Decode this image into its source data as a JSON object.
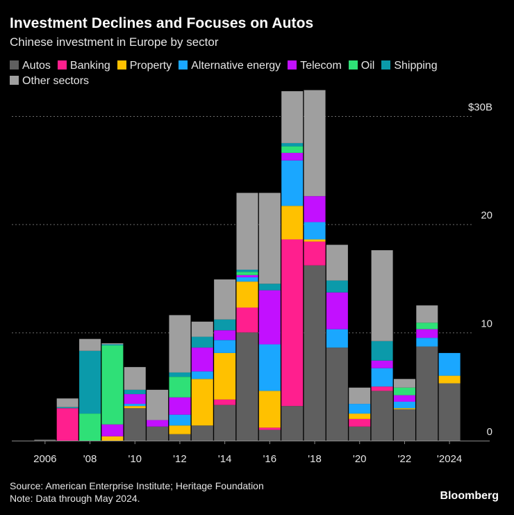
{
  "title": "Investment Declines and Focuses on Autos",
  "subtitle": "Chinese investment in Europe by sector",
  "source": "Source: American Enterprise Institute; Heritage Foundation",
  "note": "Note: Data through May 2024.",
  "brand": "Bloomberg",
  "chart_data": {
    "type": "bar",
    "stacked": true,
    "title": "Investment Declines and Focuses on Autos",
    "subtitle": "Chinese investment in Europe by sector",
    "xlabel": "",
    "ylabel": "",
    "ylim": [
      0,
      30
    ],
    "y_ticks": [
      {
        "value": 0,
        "label": "0"
      },
      {
        "value": 10,
        "label": "10"
      },
      {
        "value": 20,
        "label": "20"
      },
      {
        "value": 30,
        "label": "$30B"
      }
    ],
    "x_tick_labels": [
      {
        "year": 2006,
        "label": "2006"
      },
      {
        "year": 2008,
        "label": "'08"
      },
      {
        "year": 2010,
        "label": "'10"
      },
      {
        "year": 2012,
        "label": "'12"
      },
      {
        "year": 2014,
        "label": "'14"
      },
      {
        "year": 2016,
        "label": "'16"
      },
      {
        "year": 2018,
        "label": "'18"
      },
      {
        "year": 2020,
        "label": "'20"
      },
      {
        "year": 2022,
        "label": "'22"
      },
      {
        "year": 2024,
        "label": "'2024"
      }
    ],
    "categories": [
      2005,
      2006,
      2007,
      2008,
      2009,
      2010,
      2011,
      2012,
      2013,
      2014,
      2015,
      2016,
      2017,
      2018,
      2019,
      2020,
      2021,
      2022,
      2023,
      2024
    ],
    "series": [
      {
        "name": "Autos",
        "color": "#5f5f5f",
        "values": [
          0.0,
          0.1,
          0.0,
          0.0,
          0.0,
          3.0,
          1.3,
          0.6,
          1.4,
          3.3,
          10.0,
          1.0,
          3.2,
          16.2,
          8.6,
          1.3,
          4.6,
          2.9,
          8.7,
          5.3
        ]
      },
      {
        "name": "Banking",
        "color": "#ff1f8e",
        "values": [
          0.0,
          0.0,
          3.0,
          0.0,
          0.0,
          0.0,
          0.0,
          0.0,
          0.0,
          0.5,
          2.3,
          0.2,
          15.4,
          2.2,
          0.0,
          0.7,
          0.4,
          0.0,
          0.0,
          0.0
        ]
      },
      {
        "name": "Property",
        "color": "#ffc100",
        "values": [
          0.0,
          0.0,
          0.0,
          0.0,
          0.4,
          0.2,
          0.0,
          0.8,
          4.3,
          4.3,
          2.4,
          3.4,
          3.1,
          0.2,
          0.0,
          0.5,
          0.0,
          0.1,
          0.0,
          0.7
        ]
      },
      {
        "name": "Alternative energy",
        "color": "#1aa7ff",
        "values": [
          0.0,
          0.0,
          0.0,
          0.0,
          0.0,
          0.2,
          0.0,
          1.0,
          0.7,
          1.2,
          0.4,
          4.3,
          4.2,
          1.6,
          1.7,
          0.9,
          1.7,
          0.6,
          0.8,
          2.1
        ]
      },
      {
        "name": "Telecom",
        "color": "#c210ff",
        "values": [
          0.0,
          0.0,
          0.0,
          0.0,
          1.1,
          0.9,
          0.6,
          1.6,
          2.2,
          0.9,
          0.2,
          5.0,
          0.7,
          2.4,
          3.4,
          0.0,
          0.7,
          0.6,
          0.8,
          0.0
        ]
      },
      {
        "name": "Oil",
        "color": "#2fe077",
        "values": [
          0.0,
          0.0,
          0.0,
          2.5,
          7.3,
          0.0,
          0.0,
          1.9,
          0.0,
          0.0,
          0.3,
          0.0,
          0.6,
          0.0,
          0.0,
          0.0,
          0.0,
          0.7,
          0.6,
          0.0
        ]
      },
      {
        "name": "Shipping",
        "color": "#0b9aaa",
        "values": [
          0.0,
          0.0,
          0.1,
          5.8,
          0.1,
          0.4,
          0.0,
          0.4,
          1.0,
          1.0,
          0.2,
          0.6,
          0.3,
          0.0,
          1.1,
          0.0,
          1.8,
          0.0,
          0.0,
          0.0
        ]
      },
      {
        "name": "Other sectors",
        "color": "#9f9f9f",
        "values": [
          0.0,
          0.0,
          0.8,
          1.1,
          0.1,
          2.1,
          2.8,
          5.3,
          1.4,
          3.7,
          7.1,
          8.4,
          4.8,
          9.8,
          3.3,
          1.5,
          8.4,
          0.8,
          1.6,
          0.0
        ]
      }
    ]
  }
}
